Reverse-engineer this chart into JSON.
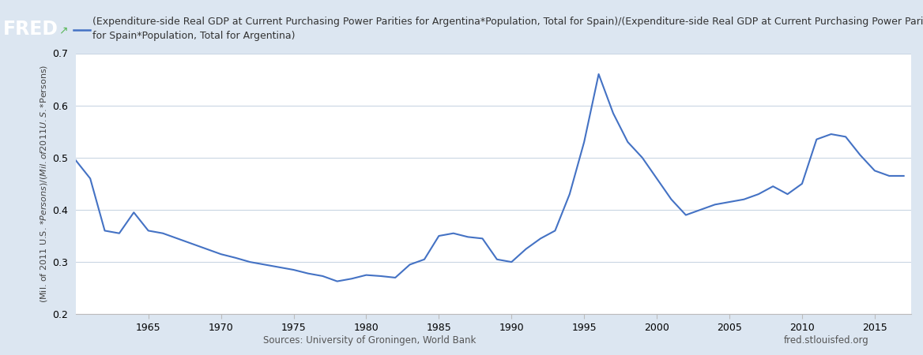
{
  "years": [
    1960,
    1961,
    1962,
    1963,
    1964,
    1965,
    1966,
    1967,
    1968,
    1969,
    1970,
    1971,
    1972,
    1973,
    1974,
    1975,
    1976,
    1977,
    1978,
    1979,
    1980,
    1981,
    1982,
    1983,
    1984,
    1985,
    1986,
    1987,
    1988,
    1989,
    1990,
    1991,
    1992,
    1993,
    1994,
    1995,
    1996,
    1997,
    1998,
    1999,
    2000,
    2001,
    2002,
    2003,
    2004,
    2005,
    2006,
    2007,
    2008,
    2009,
    2010,
    2011,
    2012,
    2013,
    2014,
    2015,
    2016,
    2017
  ],
  "values": [
    0.495,
    0.46,
    0.36,
    0.355,
    0.395,
    0.36,
    0.355,
    0.345,
    0.335,
    0.325,
    0.315,
    0.308,
    0.3,
    0.295,
    0.29,
    0.285,
    0.278,
    0.273,
    0.263,
    0.268,
    0.275,
    0.273,
    0.27,
    0.295,
    0.305,
    0.35,
    0.355,
    0.348,
    0.345,
    0.305,
    0.3,
    0.325,
    0.345,
    0.36,
    0.43,
    0.53,
    0.66,
    0.585,
    0.53,
    0.5,
    0.46,
    0.42,
    0.39,
    0.4,
    0.41,
    0.415,
    0.42,
    0.43,
    0.445,
    0.43,
    0.45,
    0.535,
    0.545,
    0.54,
    0.505,
    0.475,
    0.465,
    0.465
  ],
  "line_color": "#4472c4",
  "line_width": 1.5,
  "title_line1": "(Expenditure-side Real GDP at Current Purchasing Power Parities for Argentina*Population, Total for Spain)/(Expenditure-side Real GDP at Current Purchasing Power Parities",
  "title_line2": "for Spain*Population, Total for Argentina)",
  "title_fontsize": 9.0,
  "ylabel": "(Mil. of 2011 U.S. $*Persons)/(Mil. of 2011 U.S. $*Persons)",
  "ylabel_fontsize": 8,
  "source_text": "Sources: University of Groningen, World Bank",
  "fred_text": "fred.stlouisfed.org",
  "background_color": "#dce6f1",
  "plot_bg_color": "#ffffff",
  "grid_color": "#c9d6e3",
  "xtick_labels": [
    "1965",
    "1970",
    "1975",
    "1980",
    "1985",
    "1990",
    "1995",
    "2000",
    "2005",
    "2010",
    "2015"
  ],
  "xtick_years": [
    1965,
    1970,
    1975,
    1980,
    1985,
    1990,
    1995,
    2000,
    2005,
    2010,
    2015
  ],
  "ylim": [
    0.2,
    0.7
  ],
  "yticks": [
    0.2,
    0.3,
    0.4,
    0.5,
    0.6,
    0.7
  ],
  "fred_logo_color": "#cc0000",
  "legend_line_color": "#4472c4",
  "xlim_left": 1960,
  "xlim_right": 2017.5
}
